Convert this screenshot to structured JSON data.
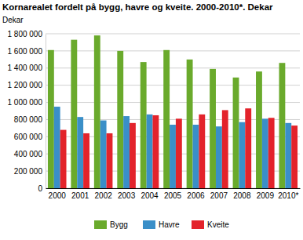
{
  "chart_data": {
    "type": "bar",
    "title": "Kornarealet fordelt på bygg, havre og kveite. 2000-2010*. Dekar",
    "y_label": "Dekar",
    "categories": [
      "2000",
      "2001",
      "2002",
      "2003",
      "2004",
      "2005",
      "2006",
      "2007",
      "2008",
      "2009",
      "2010*"
    ],
    "series": [
      {
        "name": "Bygg",
        "color": "#6aaa2c",
        "values": [
          1610000,
          1730000,
          1780000,
          1600000,
          1470000,
          1610000,
          1500000,
          1390000,
          1290000,
          1360000,
          1460000
        ]
      },
      {
        "name": "Havre",
        "color": "#3a8fc8",
        "values": [
          950000,
          830000,
          790000,
          840000,
          860000,
          740000,
          740000,
          720000,
          770000,
          810000,
          760000
        ]
      },
      {
        "name": "Kveite",
        "color": "#e3232b",
        "values": [
          680000,
          640000,
          640000,
          760000,
          850000,
          810000,
          860000,
          910000,
          930000,
          820000,
          730000
        ]
      }
    ],
    "ylim": [
      0,
      1800000
    ],
    "yticks": [
      0,
      {
        "value": 200000,
        "label": "200 000"
      },
      {
        "value": 400000,
        "label": "400 000"
      },
      {
        "value": 600000,
        "label": "600 000"
      },
      {
        "value": 800000,
        "label": "800 000"
      },
      {
        "value": 1000000,
        "label": "1 000 000"
      },
      {
        "value": 1200000,
        "label": "1 200 000"
      },
      {
        "value": 1400000,
        "label": "1 400 000"
      },
      {
        "value": 1600000,
        "label": "1 600 000"
      },
      {
        "value": 1800000,
        "label": "1 800 000"
      }
    ],
    "grid": true,
    "legend": "bottom"
  }
}
